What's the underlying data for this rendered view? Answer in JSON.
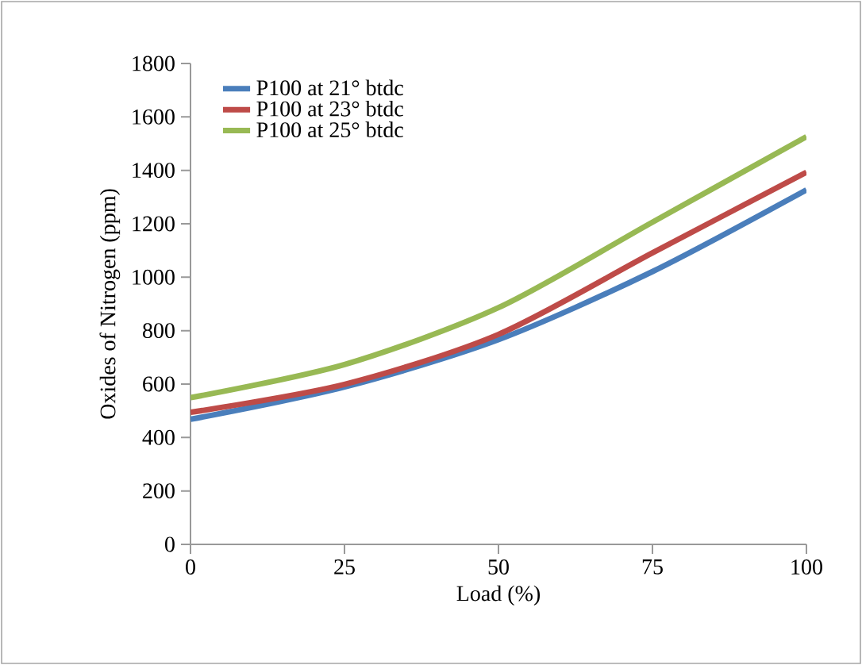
{
  "chart_data": {
    "type": "line",
    "xlabel": "Load (%)",
    "ylabel": "Oxides of Nitrogen (ppm)",
    "x": [
      0,
      25,
      50,
      75,
      100
    ],
    "series": [
      {
        "name": "P100 at 21° btdc",
        "color": "#4a7ebb",
        "values": [
          468,
          589,
          766,
          1021,
          1327
        ]
      },
      {
        "name": "P100 at 23° btdc",
        "color": "#be4b48",
        "values": [
          494,
          599,
          786,
          1091,
          1393
        ]
      },
      {
        "name": "P100 at 25° btdc",
        "color": "#98b954",
        "values": [
          549,
          673,
          886,
          1206,
          1526
        ]
      }
    ],
    "xlim": [
      0,
      100
    ],
    "xticks": [
      0,
      25,
      50,
      75,
      100
    ],
    "ylim": [
      0,
      1800
    ],
    "yticks": [
      0,
      200,
      400,
      600,
      800,
      1000,
      1200,
      1400,
      1600,
      1800
    ],
    "legend": "top left",
    "grid": false,
    "marker": "none",
    "line_style": "solid"
  }
}
